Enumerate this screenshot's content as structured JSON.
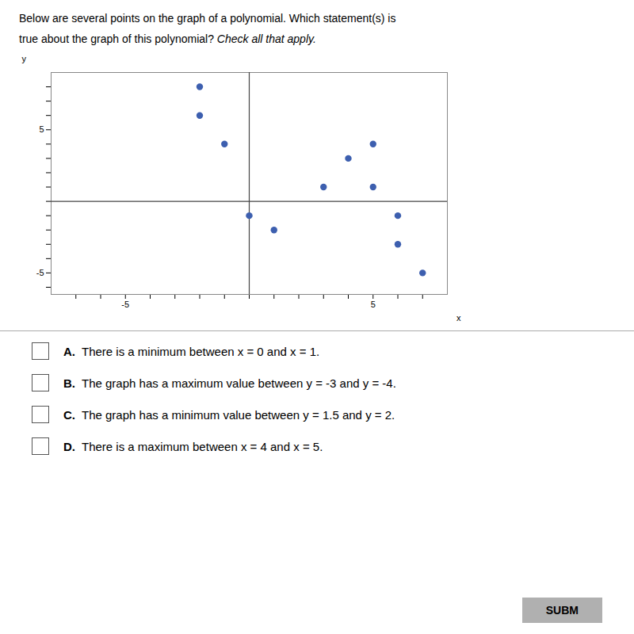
{
  "chart_data": {
    "type": "scatter",
    "title": "Below are several points on the graph of a polynomial. Which statement(s) is",
    "subtitle": "true about the graph of this polynomial?",
    "x": [
      -2,
      -2,
      -1,
      0,
      1,
      3,
      4,
      5,
      5,
      6,
      6,
      7
    ],
    "values": [
      8,
      6,
      4,
      -1,
      -2,
      1,
      3,
      4,
      1,
      -1,
      -3,
      -5
    ],
    "color": "#3d5faf",
    "x_label": "x",
    "y_label": "y",
    "xlim": [
      -8,
      8
    ],
    "ylim": [
      -6.5,
      9
    ],
    "xticks": [
      {
        "value": -7,
        "label": null
      },
      {
        "value": -6,
        "label": null
      },
      -5,
      {
        "value": -4,
        "label": null
      },
      {
        "value": -3,
        "label": null
      },
      {
        "value": -2,
        "label": null
      },
      {
        "value": -1,
        "label": null
      },
      {
        "value": 0,
        "label": null
      },
      {
        "value": 1,
        "label": null
      },
      {
        "value": 2,
        "label": null
      },
      {
        "value": 3,
        "label": null
      },
      {
        "value": 4,
        "label": null
      },
      5,
      {
        "value": 6,
        "label": null
      },
      {
        "value": 7,
        "label": null
      }
    ],
    "yticks": [
      {
        "value": -6,
        "label": null
      },
      -5,
      {
        "value": -4,
        "label": null
      },
      {
        "value": -3,
        "label": null
      },
      {
        "value": -2,
        "label": null
      },
      {
        "value": -1,
        "label": null
      },
      {
        "value": 0,
        "label": null
      },
      {
        "value": 1,
        "label": null
      },
      {
        "value": 2,
        "label": null
      },
      {
        "value": 3,
        "label": null
      },
      {
        "value": 4,
        "label": null
      },
      5,
      {
        "value": 6,
        "label": null
      },
      {
        "value": 7,
        "label": null
      },
      {
        "value": 8,
        "label": null
      }
    ],
    "grid": false,
    "annotations": [
      "Check all that apply.",
      "A. There is a minimum between x = 0 and x = 1.",
      "B. The graph has a maximum value between y = -3 and y = -4.",
      "C. The graph has a minimum value between y = 1.5 and y = 2.",
      "D. There is a maximum between x = 4 and x = 5.",
      "SUBM"
    ]
  }
}
